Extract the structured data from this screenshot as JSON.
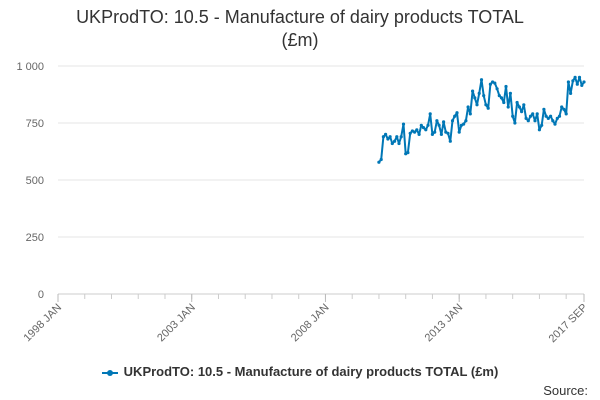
{
  "chart_data": {
    "type": "line",
    "title_line1": "UKProdTO: 10.5 - Manufacture of dairy products TOTAL",
    "title_line2": "(£m)",
    "xlabel": "",
    "ylabel": "",
    "ylim": [
      0,
      1000
    ],
    "y_ticks": [
      {
        "value": 0,
        "label": "0"
      },
      {
        "value": 250,
        "label": "250"
      },
      {
        "value": 500,
        "label": "500"
      },
      {
        "value": 750,
        "label": "750"
      },
      {
        "value": 1000,
        "label": "1 000"
      }
    ],
    "xlim": [
      "1998-01",
      "2017-09"
    ],
    "x_ticks": [
      {
        "date": "1998-01",
        "label": "1998 JAN"
      },
      {
        "date": "2003-01",
        "label": "2003 JAN"
      },
      {
        "date": "2008-01",
        "label": "2008 JAN"
      },
      {
        "date": "2013-01",
        "label": "2013 JAN"
      },
      {
        "date": "2017-09",
        "label": "2017 SEP"
      }
    ],
    "grid": true,
    "legend_position": "bottom",
    "series": [
      {
        "name": "UKProdTO: 10.5 - Manufacture of dairy products TOTAL (£m)",
        "color": "#0077b6",
        "points": [
          [
            "2010-01",
            578
          ],
          [
            "2010-02",
            590
          ],
          [
            "2010-03",
            690
          ],
          [
            "2010-04",
            700
          ],
          [
            "2010-05",
            680
          ],
          [
            "2010-06",
            690
          ],
          [
            "2010-07",
            660
          ],
          [
            "2010-08",
            670
          ],
          [
            "2010-09",
            690
          ],
          [
            "2010-10",
            660
          ],
          [
            "2010-11",
            690
          ],
          [
            "2010-12",
            745
          ],
          [
            "2011-01",
            615
          ],
          [
            "2011-02",
            620
          ],
          [
            "2011-03",
            705
          ],
          [
            "2011-04",
            715
          ],
          [
            "2011-05",
            710
          ],
          [
            "2011-06",
            720
          ],
          [
            "2011-07",
            700
          ],
          [
            "2011-08",
            740
          ],
          [
            "2011-09",
            730
          ],
          [
            "2011-10",
            720
          ],
          [
            "2011-11",
            740
          ],
          [
            "2011-12",
            790
          ],
          [
            "2012-01",
            700
          ],
          [
            "2012-02",
            710
          ],
          [
            "2012-03",
            760
          ],
          [
            "2012-04",
            740
          ],
          [
            "2012-05",
            700
          ],
          [
            "2012-06",
            755
          ],
          [
            "2012-07",
            710
          ],
          [
            "2012-08",
            705
          ],
          [
            "2012-09",
            670
          ],
          [
            "2012-10",
            760
          ],
          [
            "2012-11",
            780
          ],
          [
            "2012-12",
            795
          ],
          [
            "2013-01",
            710
          ],
          [
            "2013-02",
            740
          ],
          [
            "2013-03",
            745
          ],
          [
            "2013-04",
            760
          ],
          [
            "2013-05",
            820
          ],
          [
            "2013-06",
            790
          ],
          [
            "2013-07",
            890
          ],
          [
            "2013-08",
            860
          ],
          [
            "2013-09",
            830
          ],
          [
            "2013-10",
            880
          ],
          [
            "2013-11",
            940
          ],
          [
            "2013-12",
            870
          ],
          [
            "2014-01",
            830
          ],
          [
            "2014-02",
            815
          ],
          [
            "2014-03",
            920
          ],
          [
            "2014-04",
            930
          ],
          [
            "2014-05",
            925
          ],
          [
            "2014-06",
            900
          ],
          [
            "2014-07",
            870
          ],
          [
            "2014-08",
            860
          ],
          [
            "2014-09",
            840
          ],
          [
            "2014-10",
            910
          ],
          [
            "2014-11",
            820
          ],
          [
            "2014-12",
            880
          ],
          [
            "2015-01",
            780
          ],
          [
            "2015-02",
            750
          ],
          [
            "2015-03",
            840
          ],
          [
            "2015-04",
            820
          ],
          [
            "2015-05",
            800
          ],
          [
            "2015-06",
            830
          ],
          [
            "2015-07",
            770
          ],
          [
            "2015-08",
            760
          ],
          [
            "2015-09",
            780
          ],
          [
            "2015-10",
            790
          ],
          [
            "2015-11",
            760
          ],
          [
            "2015-12",
            790
          ],
          [
            "2016-01",
            720
          ],
          [
            "2016-02",
            740
          ],
          [
            "2016-03",
            810
          ],
          [
            "2016-04",
            780
          ],
          [
            "2016-05",
            770
          ],
          [
            "2016-06",
            780
          ],
          [
            "2016-07",
            760
          ],
          [
            "2016-08",
            745
          ],
          [
            "2016-09",
            770
          ],
          [
            "2016-10",
            780
          ],
          [
            "2016-11",
            820
          ],
          [
            "2016-12",
            810
          ],
          [
            "2017-01",
            790
          ],
          [
            "2017-02",
            930
          ],
          [
            "2017-03",
            880
          ],
          [
            "2017-04",
            935
          ],
          [
            "2017-05",
            950
          ],
          [
            "2017-06",
            920
          ],
          [
            "2017-07",
            950
          ],
          [
            "2017-08",
            915
          ],
          [
            "2017-09",
            930
          ]
        ]
      }
    ]
  },
  "legend": {
    "label": "UKProdTO: 10.5 - Manufacture of dairy products TOTAL (£m)"
  },
  "source": {
    "label": "Source:"
  }
}
